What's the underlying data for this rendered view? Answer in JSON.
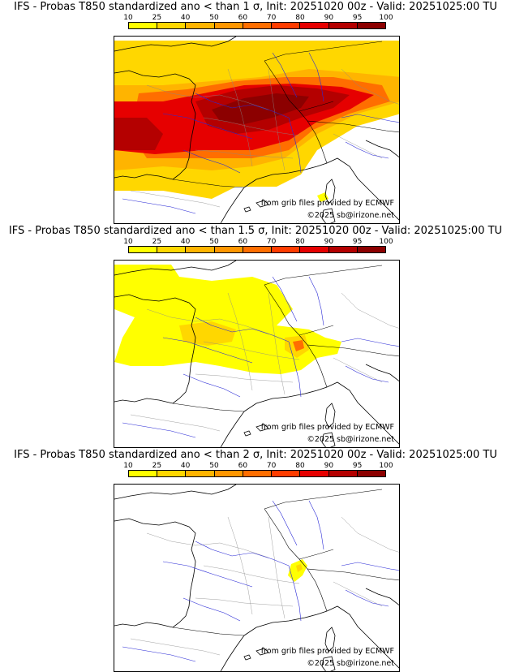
{
  "colorbar": {
    "ticks": [
      "10",
      "25",
      "40",
      "50",
      "60",
      "70",
      "80",
      "90",
      "95",
      "100"
    ],
    "colors": [
      "#ffff00",
      "#ffd700",
      "#ffb400",
      "#ff9600",
      "#ff6e00",
      "#ff3c00",
      "#e60000",
      "#b40000",
      "#8c0000"
    ]
  },
  "panels": [
    {
      "title": "IFS - Probas T850  standardized ano < than 1 σ, Init: 20251020 00z - Valid: 20251025:00 TU",
      "credit_source": "from grib files provided by ECMWF",
      "credit_copyright": "©2025 sb@irizone.net"
    },
    {
      "title": "IFS - Probas T850  standardized ano < than 1.5 σ, Init: 20251020 00z - Valid: 20251025:00 TU",
      "credit_source": "from grib files provided by ECMWF",
      "credit_copyright": "©2025 sb@irizone.net"
    },
    {
      "title": "IFS - Probas T850  standardized ano < than 2 σ, Init: 20251020 00z - Valid: 20251025:00 TU",
      "credit_source": "from grib files provided by ECMWF",
      "credit_copyright": "©2025 sb@irizone.net"
    }
  ]
}
